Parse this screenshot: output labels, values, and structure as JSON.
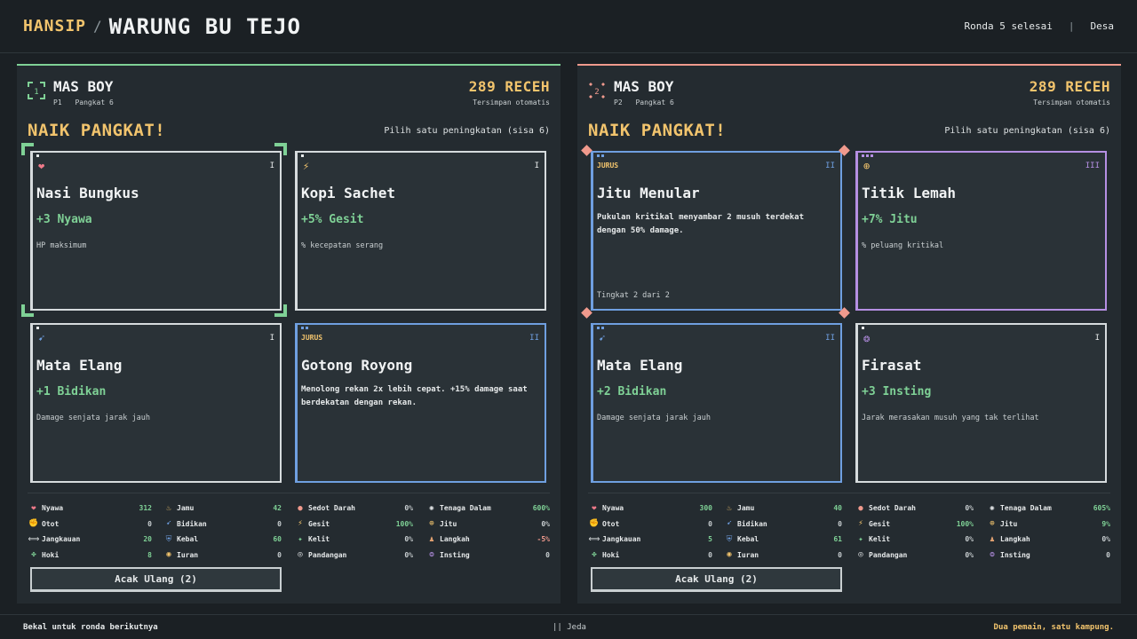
{
  "header": {
    "brand": "HANSIP",
    "separator": "/",
    "shop": "WARUNG BU TEJO",
    "round": "Ronda 5 selesai",
    "divider": "|",
    "location": "Desa"
  },
  "colors": {
    "p1_accent": "#7fd196",
    "p2_accent": "#f09a8d",
    "gold": "#f2c46d",
    "jurus_blue": "#6f9fe0",
    "rare_purple": "#b58fe3"
  },
  "players": [
    {
      "name": "MAS BOY",
      "id": "P1",
      "rank": "Pangkat 6",
      "coins": "289 RECEH",
      "saved": "Tersimpan otomatis",
      "levelup": "NAIK PANGKAT!",
      "hint": "Pilih satu peningkatan (sisa 6)",
      "reroll": "Acak Ulang (2)",
      "cards": [
        {
          "icon": "heart-icon",
          "glyph": "❤",
          "tier": "I",
          "title": "Nasi Bungkus",
          "stat": "+3 Nyawa",
          "desc": "HP maksimum"
        },
        {
          "icon": "lightning-icon",
          "glyph": "⚡",
          "tier": "I",
          "title": "Kopi Sachet",
          "stat": "+5% Gesit",
          "desc": "% kecepatan serang"
        },
        {
          "icon": "arrow-icon",
          "glyph": "➹",
          "tier": "I",
          "title": "Mata Elang",
          "stat": "+1 Bidikan",
          "desc": "Damage senjata jarak jauh"
        },
        {
          "tag": "JURUS",
          "tier": "II",
          "title": "Gotong Royong",
          "body": "Menolong rekan 2x lebih cepat. +15% damage saat berdekatan dengan rekan."
        }
      ],
      "stats": [
        [
          {
            "icon": "heart-icon",
            "glyph": "❤",
            "label": "Nyawa",
            "value": "312",
            "tone": "pos"
          },
          {
            "icon": "muscle-icon",
            "glyph": "✊",
            "label": "Otot",
            "value": "0",
            "tone": ""
          },
          {
            "icon": "range-icon",
            "glyph": "⟺",
            "label": "Jangkauan",
            "value": "20",
            "tone": "pos"
          },
          {
            "icon": "clover-icon",
            "glyph": "✤",
            "label": "Hoki",
            "value": "8",
            "tone": "pos"
          }
        ],
        [
          {
            "icon": "potion-icon",
            "glyph": "♨",
            "label": "Jamu",
            "value": "42",
            "tone": "pos"
          },
          {
            "icon": "arrow-icon",
            "glyph": "➹",
            "label": "Bidikan",
            "value": "0",
            "tone": ""
          },
          {
            "icon": "shield-icon",
            "glyph": "⛨",
            "label": "Kebal",
            "value": "60",
            "tone": "pos"
          },
          {
            "icon": "coin-icon",
            "glyph": "◉",
            "label": "Iuran",
            "value": "0",
            "tone": ""
          }
        ],
        [
          {
            "icon": "blood-drop-icon",
            "glyph": "●",
            "label": "Sedot Darah",
            "value": "0%",
            "tone": ""
          },
          {
            "icon": "lightning-icon",
            "glyph": "⚡",
            "label": "Gesit",
            "value": "100%",
            "tone": "pos"
          },
          {
            "icon": "dodge-icon",
            "glyph": "✦",
            "label": "Kelit",
            "value": "0%",
            "tone": ""
          },
          {
            "icon": "eye-icon",
            "glyph": "◎",
            "label": "Pandangan",
            "value": "0%",
            "tone": ""
          }
        ],
        [
          {
            "icon": "inner-power-icon",
            "glyph": "✺",
            "label": "Tenaga Dalam",
            "value": "600%",
            "tone": "pos"
          },
          {
            "icon": "crosshair-icon",
            "glyph": "⊕",
            "label": "Jitu",
            "value": "0%",
            "tone": ""
          },
          {
            "icon": "boot-icon",
            "glyph": "♟",
            "label": "Langkah",
            "value": "-5%",
            "tone": "neg"
          },
          {
            "icon": "instinct-icon",
            "glyph": "❂",
            "label": "Insting",
            "value": "0",
            "tone": ""
          }
        ]
      ]
    },
    {
      "name": "MAS BOY",
      "id": "P2",
      "rank": "Pangkat 6",
      "coins": "289 RECEH",
      "saved": "Tersimpan otomatis",
      "levelup": "NAIK PANGKAT!",
      "hint": "Pilih satu peningkatan (sisa 6)",
      "reroll": "Acak Ulang (2)",
      "cards": [
        {
          "tag": "JURUS",
          "tier": "II",
          "title": "Jitu Menular",
          "body": "Pukulan kritikal menyambar 2 musuh terdekat dengan 50% damage.",
          "foot": "Tingkat 2 dari 2"
        },
        {
          "icon": "crosshair-icon",
          "glyph": "⊕",
          "tier": "III",
          "title": "Titik Lemah",
          "stat": "+7% Jitu",
          "desc": "% peluang kritikal"
        },
        {
          "icon": "arrow-icon",
          "glyph": "➹",
          "tier": "II",
          "title": "Mata Elang",
          "stat": "+2 Bidikan",
          "desc": "Damage senjata jarak jauh"
        },
        {
          "icon": "instinct-icon",
          "glyph": "❂",
          "tier": "I",
          "title": "Firasat",
          "stat": "+3 Insting",
          "desc": "Jarak merasakan musuh yang tak terlihat"
        }
      ],
      "stats": [
        [
          {
            "icon": "heart-icon",
            "glyph": "❤",
            "label": "Nyawa",
            "value": "300",
            "tone": "pos"
          },
          {
            "icon": "muscle-icon",
            "glyph": "✊",
            "label": "Otot",
            "value": "0",
            "tone": ""
          },
          {
            "icon": "range-icon",
            "glyph": "⟺",
            "label": "Jangkauan",
            "value": "5",
            "tone": "pos"
          },
          {
            "icon": "clover-icon",
            "glyph": "✤",
            "label": "Hoki",
            "value": "0",
            "tone": ""
          }
        ],
        [
          {
            "icon": "potion-icon",
            "glyph": "♨",
            "label": "Jamu",
            "value": "40",
            "tone": "pos"
          },
          {
            "icon": "arrow-icon",
            "glyph": "➹",
            "label": "Bidikan",
            "value": "0",
            "tone": ""
          },
          {
            "icon": "shield-icon",
            "glyph": "⛨",
            "label": "Kebal",
            "value": "61",
            "tone": "pos"
          },
          {
            "icon": "coin-icon",
            "glyph": "◉",
            "label": "Iuran",
            "value": "0",
            "tone": ""
          }
        ],
        [
          {
            "icon": "blood-drop-icon",
            "glyph": "●",
            "label": "Sedot Darah",
            "value": "0%",
            "tone": ""
          },
          {
            "icon": "lightning-icon",
            "glyph": "⚡",
            "label": "Gesit",
            "value": "100%",
            "tone": "pos"
          },
          {
            "icon": "dodge-icon",
            "glyph": "✦",
            "label": "Kelit",
            "value": "0%",
            "tone": ""
          },
          {
            "icon": "eye-icon",
            "glyph": "◎",
            "label": "Pandangan",
            "value": "0%",
            "tone": ""
          }
        ],
        [
          {
            "icon": "inner-power-icon",
            "glyph": "✺",
            "label": "Tenaga Dalam",
            "value": "605%",
            "tone": "pos"
          },
          {
            "icon": "crosshair-icon",
            "glyph": "⊕",
            "label": "Jitu",
            "value": "9%",
            "tone": "pos"
          },
          {
            "icon": "boot-icon",
            "glyph": "♟",
            "label": "Langkah",
            "value": "0%",
            "tone": ""
          },
          {
            "icon": "instinct-icon",
            "glyph": "❂",
            "label": "Insting",
            "value": "0",
            "tone": ""
          }
        ]
      ]
    }
  ],
  "footer": {
    "left": "Bekal untuk ronda berikutnya",
    "center": "|| Jeda",
    "right": "Dua pemain, satu kampung."
  }
}
